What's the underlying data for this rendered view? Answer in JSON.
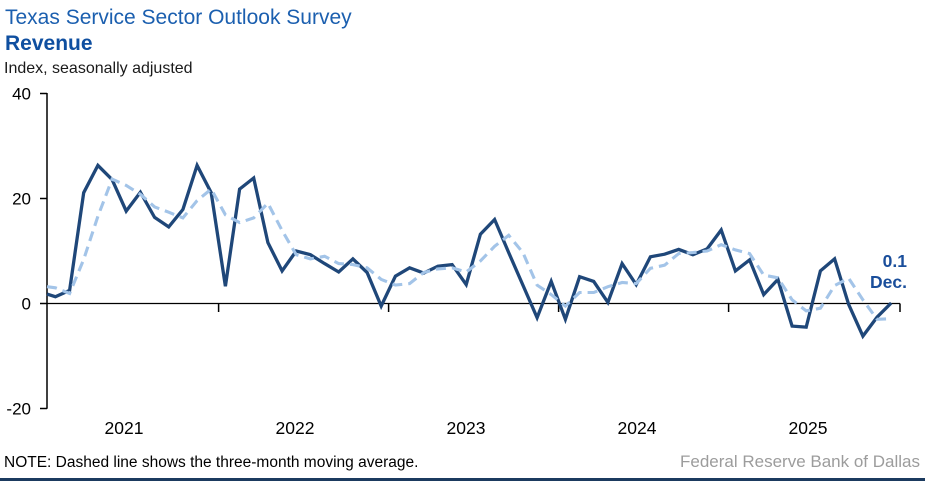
{
  "header": {
    "title": "Texas Service Sector Outlook Survey",
    "subtitle": "Revenue",
    "y_axis_note": "Index, seasonally adjusted"
  },
  "chart_data": {
    "type": "line",
    "title": "Texas Service Sector Outlook Survey — Revenue",
    "ylabel": "Index, seasonally adjusted",
    "ylim": [
      -20,
      40
    ],
    "yticks": [
      40,
      20,
      0,
      -20
    ],
    "x_range": {
      "start": "Jan 2021",
      "end": "Dec 2025",
      "frequency": "monthly"
    },
    "year_labels": [
      "2021",
      "2022",
      "2023",
      "2024",
      "2025"
    ],
    "grid": false,
    "legend_position": "none",
    "series": [
      {
        "name": "Revenue index (monthly)",
        "style": "solid",
        "color": "#1F4779",
        "axis_edge_value": 1.8,
        "values": [
          1.3,
          2.5,
          21.1,
          26.3,
          23.6,
          17.6,
          21.2,
          16.4,
          14.6,
          17.9,
          26.3,
          21.1,
          3.3,
          21.8,
          23.9,
          11.6,
          6.2,
          10.0,
          9.3,
          7.6,
          6.0,
          8.5,
          5.9,
          -0.5,
          5.2,
          6.8,
          5.8,
          7.1,
          7.4,
          3.6,
          13.2,
          16.0,
          9.7,
          3.5,
          -2.7,
          4.2,
          -3.0,
          5.1,
          4.2,
          0.2,
          7.6,
          3.6,
          8.9,
          9.4,
          10.3,
          9.3,
          10.4,
          14.0,
          6.2,
          8.3,
          1.7,
          4.6,
          -4.3,
          -4.5,
          6.2,
          8.5,
          -0.2,
          -6.2,
          -2.6,
          0.1
        ]
      },
      {
        "name": "Three-month moving average",
        "style": "dashed",
        "color": "#A3C4E8",
        "axis_edge_value": 3.2,
        "values": [
          3.0,
          1.9,
          8.4,
          16.6,
          23.7,
          22.5,
          20.8,
          18.4,
          17.4,
          16.3,
          19.6,
          21.8,
          16.9,
          15.4,
          16.3,
          19.1,
          13.9,
          9.3,
          8.5,
          9.0,
          7.6,
          7.4,
          6.8,
          4.6,
          3.5,
          3.8,
          5.9,
          6.6,
          6.8,
          6.0,
          8.1,
          10.9,
          13.0,
          9.7,
          3.5,
          1.7,
          -0.5,
          2.1,
          2.1,
          3.2,
          4.0,
          3.8,
          6.7,
          7.3,
          9.5,
          9.7,
          10.0,
          11.2,
          10.2,
          9.5,
          5.4,
          4.9,
          0.7,
          -1.4,
          -0.9,
          3.4,
          4.8,
          0.7,
          -3.0,
          -2.9
        ]
      }
    ],
    "end_label": {
      "value": "0.1",
      "month": "Dec."
    }
  },
  "footer": {
    "note": "NOTE: Dashed line shows the three-month moving average.",
    "source": "Federal Reserve Bank of Dallas"
  },
  "colors": {
    "title_blue": "#1B5FAF",
    "subtitle_blue": "#0F4FA0",
    "line_navy": "#1F4779",
    "line_light_blue": "#A3C4E8",
    "end_label_blue": "#1A4E9B",
    "axis_black": "#000000",
    "source_gray": "#9C9C9C",
    "bottom_rule_navy": "#1B3A5F"
  }
}
